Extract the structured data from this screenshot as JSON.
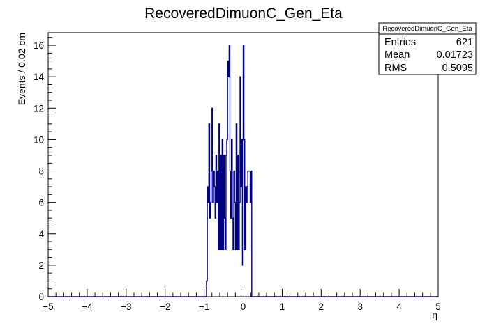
{
  "chart_data": {
    "type": "histogram",
    "title": "RecoveredDimuonC_Gen_Eta",
    "xlabel": "η",
    "ylabel": "Events / 0.02 cm",
    "xlim": [
      -5,
      5
    ],
    "ylim": [
      0,
      16.8
    ],
    "bin_width": 0.02,
    "x_ticks": [
      -5,
      -4,
      -3,
      -2,
      -1,
      0,
      1,
      2,
      3,
      4,
      5
    ],
    "x_tick_labels": [
      "−5",
      "−4",
      "−3",
      "−2",
      "−1",
      "0",
      "1",
      "2",
      "3",
      "4",
      "5"
    ],
    "y_ticks": [
      0,
      2,
      4,
      6,
      8,
      10,
      12,
      14,
      16
    ],
    "y_tick_labels": [
      "0",
      "2",
      "4",
      "6",
      "8",
      "10",
      "12",
      "14",
      "16"
    ],
    "first_bin_low_edge": -0.94,
    "counts": [
      1,
      7,
      6,
      11,
      5,
      6,
      8,
      12,
      6,
      8,
      7,
      5,
      9,
      6,
      8,
      3,
      11,
      3,
      9,
      3,
      10,
      3,
      9,
      5,
      3,
      9,
      10,
      15,
      14,
      16,
      8,
      5,
      10,
      5,
      3,
      8,
      6,
      3,
      11,
      3,
      9,
      3,
      6,
      14,
      7,
      10,
      2,
      16,
      10,
      3,
      7,
      6,
      7,
      8,
      8,
      8,
      6,
      8,
      0
    ],
    "line_color": "#000080",
    "grid": false,
    "legend": "top-right"
  },
  "stats": {
    "title": "RecoveredDimuonC_Gen_Eta",
    "rows": [
      {
        "label": "Entries",
        "value": "621"
      },
      {
        "label": "Mean",
        "value": "0.01723"
      },
      {
        "label": "RMS",
        "value": "0.5095"
      }
    ]
  }
}
